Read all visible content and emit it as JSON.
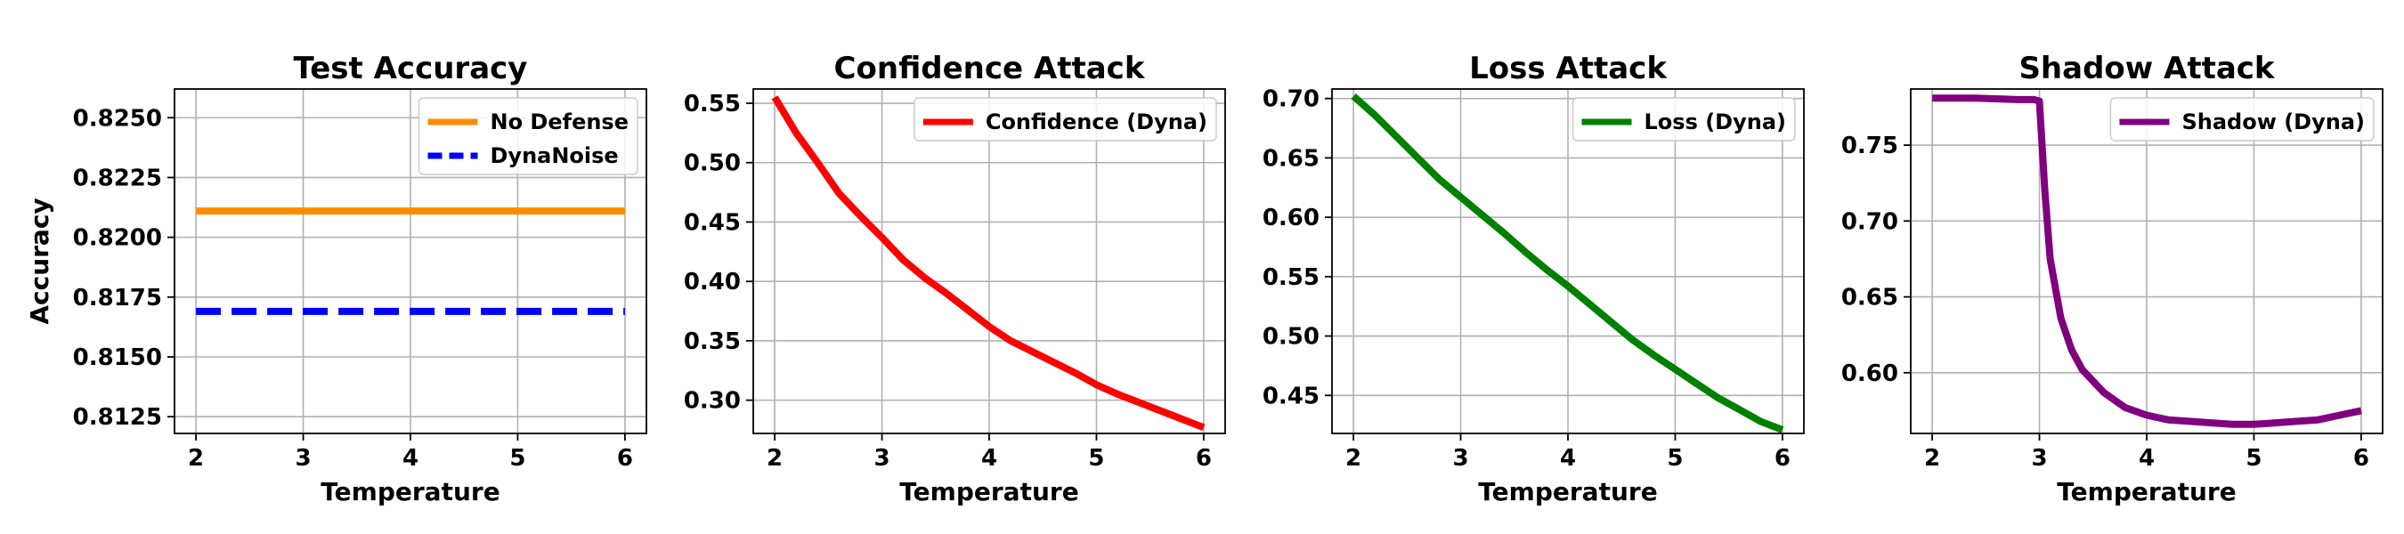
{
  "chart_data": [
    {
      "type": "line",
      "title": "Test Accuracy",
      "xlabel": "Temperature",
      "ylabel": "Accuracy",
      "xlim": [
        1.8,
        6.2
      ],
      "ylim": [
        0.8118,
        0.8262
      ],
      "xticks": [
        2,
        3,
        4,
        5,
        6
      ],
      "yticks": [
        0.8125,
        0.815,
        0.8175,
        0.82,
        0.8225,
        0.825
      ],
      "ytick_labels": [
        "0.8125",
        "0.8150",
        "0.8175",
        "0.8200",
        "0.8225",
        "0.8250"
      ],
      "grid": true,
      "legend_position": "top-right",
      "series": [
        {
          "name": "No Defense",
          "color": "#ff8c00",
          "dash": "solid",
          "x": [
            2,
            6
          ],
          "y": [
            0.8211,
            0.8211
          ]
        },
        {
          "name": "DynaNoise",
          "color": "#0000ff",
          "dash": "dashed",
          "x": [
            2,
            6
          ],
          "y": [
            0.8169,
            0.8169
          ]
        }
      ]
    },
    {
      "type": "line",
      "title": "Confidence Attack",
      "xlabel": "Temperature",
      "ylabel": "",
      "xlim": [
        1.8,
        6.2
      ],
      "ylim": [
        0.272,
        0.562
      ],
      "xticks": [
        2,
        3,
        4,
        5,
        6
      ],
      "yticks": [
        0.3,
        0.35,
        0.4,
        0.45,
        0.5,
        0.55
      ],
      "ytick_labels": [
        "0.30",
        "0.35",
        "0.40",
        "0.45",
        "0.50",
        "0.55"
      ],
      "grid": true,
      "legend_position": "top-right",
      "series": [
        {
          "name": "Confidence (Dyna)",
          "color": "#ff0000",
          "dash": "solid",
          "x": [
            2.0,
            2.2,
            2.4,
            2.6,
            2.8,
            3.0,
            3.2,
            3.4,
            3.6,
            3.8,
            4.0,
            4.2,
            4.4,
            4.6,
            4.8,
            5.0,
            5.2,
            5.4,
            5.6,
            5.8,
            6.0
          ],
          "y": [
            0.555,
            0.525,
            0.5,
            0.474,
            0.455,
            0.437,
            0.418,
            0.403,
            0.39,
            0.376,
            0.362,
            0.35,
            0.341,
            0.332,
            0.323,
            0.313,
            0.305,
            0.298,
            0.291,
            0.284,
            0.277
          ]
        }
      ]
    },
    {
      "type": "line",
      "title": "Loss Attack",
      "xlabel": "Temperature",
      "ylabel": "",
      "xlim": [
        1.8,
        6.2
      ],
      "ylim": [
        0.418,
        0.708
      ],
      "xticks": [
        2,
        3,
        4,
        5,
        6
      ],
      "yticks": [
        0.45,
        0.5,
        0.55,
        0.6,
        0.65,
        0.7
      ],
      "ytick_labels": [
        "0.45",
        "0.50",
        "0.55",
        "0.60",
        "0.65",
        "0.70"
      ],
      "grid": true,
      "legend_position": "top-right",
      "series": [
        {
          "name": "Loss (Dyna)",
          "color": "#008000",
          "dash": "solid",
          "x": [
            2.0,
            2.2,
            2.4,
            2.6,
            2.8,
            3.0,
            3.2,
            3.4,
            3.6,
            3.8,
            4.0,
            4.2,
            4.4,
            4.6,
            4.8,
            5.0,
            5.2,
            5.4,
            5.6,
            5.8,
            6.0
          ],
          "y": [
            0.702,
            0.686,
            0.668,
            0.65,
            0.632,
            0.617,
            0.602,
            0.587,
            0.571,
            0.556,
            0.542,
            0.527,
            0.512,
            0.497,
            0.484,
            0.472,
            0.46,
            0.448,
            0.438,
            0.428,
            0.421
          ]
        }
      ]
    },
    {
      "type": "line",
      "title": "Shadow Attack",
      "xlabel": "Temperature",
      "ylabel": "",
      "xlim": [
        1.8,
        6.2
      ],
      "ylim": [
        0.56,
        0.787
      ],
      "xticks": [
        2,
        3,
        4,
        5,
        6
      ],
      "yticks": [
        0.6,
        0.65,
        0.7,
        0.75
      ],
      "ytick_labels": [
        "0.60",
        "0.65",
        "0.70",
        "0.75"
      ],
      "grid": true,
      "legend_position": "top-right",
      "series": [
        {
          "name": "Shadow (Dyna)",
          "color": "#800080",
          "dash": "solid",
          "x": [
            2.0,
            2.4,
            2.8,
            2.95,
            3.0,
            3.05,
            3.1,
            3.2,
            3.3,
            3.4,
            3.6,
            3.8,
            4.0,
            4.2,
            4.4,
            4.6,
            4.8,
            5.0,
            5.2,
            5.4,
            5.6,
            5.8,
            6.0
          ],
          "y": [
            0.781,
            0.781,
            0.78,
            0.78,
            0.779,
            0.72,
            0.675,
            0.636,
            0.615,
            0.602,
            0.587,
            0.577,
            0.572,
            0.569,
            0.568,
            0.567,
            0.566,
            0.566,
            0.567,
            0.568,
            0.569,
            0.572,
            0.575
          ]
        }
      ]
    }
  ]
}
